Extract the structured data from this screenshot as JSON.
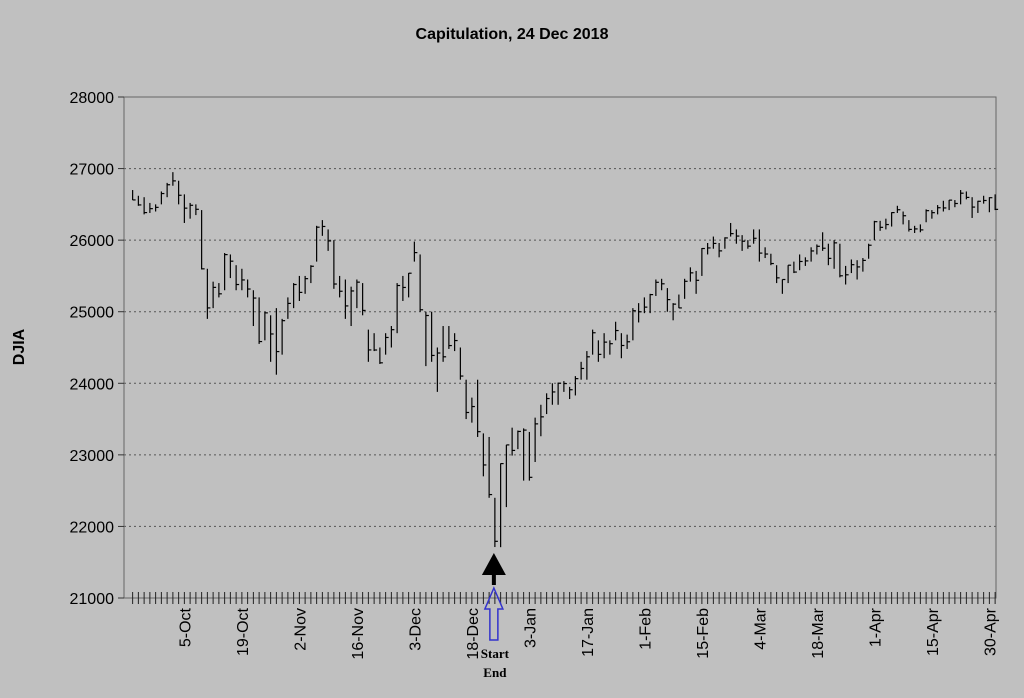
{
  "chart_data": {
    "type": "ohlc",
    "title": "Capitulation, 24 Dec 2018",
    "ylabel": "DJIA",
    "xlabel": "",
    "ylim": [
      21000,
      28000
    ],
    "yticks": [
      21000,
      22000,
      23000,
      24000,
      25000,
      26000,
      27000,
      28000
    ],
    "grid": "horizontal dotted",
    "legend": "none",
    "bar_format": "high-low-close",
    "colors": {
      "background": "#c0c0c0",
      "bars": "#000000",
      "grid": "#555555",
      "marker_up": "#000000",
      "marker_outline": "#3333cc"
    },
    "xtick_labels": [
      {
        "date": "2018-10-05",
        "label": "5-Oct"
      },
      {
        "date": "2018-10-19",
        "label": "19-Oct"
      },
      {
        "date": "2018-11-02",
        "label": "2-Nov"
      },
      {
        "date": "2018-11-16",
        "label": "16-Nov"
      },
      {
        "date": "2018-12-03",
        "label": "3-Dec"
      },
      {
        "date": "2018-12-18",
        "label": "18-Dec"
      },
      {
        "date": "2019-01-03",
        "label": "3-Jan"
      },
      {
        "date": "2019-01-17",
        "label": "17-Jan"
      },
      {
        "date": "2019-02-01",
        "label": "1-Feb"
      },
      {
        "date": "2019-02-15",
        "label": "15-Feb"
      },
      {
        "date": "2019-03-04",
        "label": "4-Mar"
      },
      {
        "date": "2019-03-18",
        "label": "18-Mar"
      },
      {
        "date": "2019-04-01",
        "label": "1-Apr"
      },
      {
        "date": "2019-04-15",
        "label": "15-Apr"
      },
      {
        "date": "2019-04-30",
        "label": "30-Apr"
      }
    ],
    "annotations": [
      {
        "date": "2018-12-24",
        "type": "arrow-up-solid",
        "label": ""
      },
      {
        "date": "2018-12-24",
        "type": "arrow-up-outline",
        "label_start": "Start",
        "label_end": "End"
      }
    ],
    "bars": [
      [
        "2018-09-24",
        26700,
        26560,
        26562
      ],
      [
        "2018-09-25",
        26620,
        26480,
        26492
      ],
      [
        "2018-09-26",
        26600,
        26360,
        26385
      ],
      [
        "2018-09-27",
        26520,
        26380,
        26440
      ],
      [
        "2018-09-28",
        26500,
        26400,
        26458
      ],
      [
        "2018-10-01",
        26680,
        26500,
        26651
      ],
      [
        "2018-10-02",
        26800,
        26600,
        26774
      ],
      [
        "2018-10-03",
        26950,
        26760,
        26828
      ],
      [
        "2018-10-04",
        26830,
        26500,
        26627
      ],
      [
        "2018-10-05",
        26640,
        26240,
        26447
      ],
      [
        "2018-10-08",
        26520,
        26300,
        26487
      ],
      [
        "2018-10-09",
        26500,
        26350,
        26431
      ],
      [
        "2018-10-10",
        26420,
        25590,
        25599
      ],
      [
        "2018-10-11",
        25600,
        24900,
        25053
      ],
      [
        "2018-10-12",
        25420,
        25050,
        25340
      ],
      [
        "2018-10-15",
        25400,
        25200,
        25250
      ],
      [
        "2018-10-16",
        25820,
        25300,
        25798
      ],
      [
        "2018-10-17",
        25800,
        25470,
        25706
      ],
      [
        "2018-10-18",
        25650,
        25300,
        25380
      ],
      [
        "2018-10-19",
        25600,
        25300,
        25444
      ],
      [
        "2018-10-22",
        25450,
        25200,
        25317
      ],
      [
        "2018-10-23",
        25300,
        24800,
        25191
      ],
      [
        "2018-10-24",
        25200,
        24550,
        24583
      ],
      [
        "2018-10-25",
        25000,
        24600,
        24984
      ],
      [
        "2018-10-26",
        24950,
        24300,
        24689
      ],
      [
        "2018-10-29",
        25050,
        24120,
        24443
      ],
      [
        "2018-10-30",
        24900,
        24400,
        24875
      ],
      [
        "2018-10-31",
        25200,
        24900,
        25116
      ],
      [
        "2018-11-01",
        25400,
        25050,
        25380
      ],
      [
        "2018-11-02",
        25500,
        25150,
        25270
      ],
      [
        "2018-11-05",
        25500,
        25250,
        25462
      ],
      [
        "2018-11-06",
        25650,
        25400,
        25635
      ],
      [
        "2018-11-07",
        26200,
        25700,
        26181
      ],
      [
        "2018-11-08",
        26280,
        26060,
        26191
      ],
      [
        "2018-11-09",
        26150,
        25850,
        25989
      ],
      [
        "2018-11-12",
        26000,
        25320,
        25387
      ],
      [
        "2018-11-13",
        25500,
        25200,
        25286
      ],
      [
        "2018-11-14",
        25450,
        24900,
        25081
      ],
      [
        "2018-11-15",
        25350,
        24800,
        25290
      ],
      [
        "2018-11-16",
        25450,
        25050,
        25413
      ],
      [
        "2018-11-19",
        25400,
        24950,
        25018
      ],
      [
        "2018-11-20",
        24750,
        24300,
        24466
      ],
      [
        "2018-11-21",
        24700,
        24450,
        24465
      ],
      [
        "2018-11-23",
        24500,
        24270,
        24286
      ],
      [
        "2018-11-26",
        24700,
        24400,
        24640
      ],
      [
        "2018-11-27",
        24800,
        24500,
        24749
      ],
      [
        "2018-11-28",
        25400,
        24700,
        25366
      ],
      [
        "2018-11-29",
        25500,
        25150,
        25339
      ],
      [
        "2018-11-30",
        25540,
        25200,
        25538
      ],
      [
        "2018-12-03",
        25980,
        25700,
        25826
      ],
      [
        "2018-12-04",
        25800,
        25000,
        25027
      ],
      [
        "2018-12-06",
        25000,
        24240,
        24947
      ],
      [
        "2018-12-07",
        25000,
        24300,
        24389
      ],
      [
        "2018-12-10",
        24500,
        23880,
        24423
      ],
      [
        "2018-12-11",
        24800,
        24300,
        24370
      ],
      [
        "2018-12-12",
        24800,
        24480,
        24527
      ],
      [
        "2018-12-13",
        24700,
        24450,
        24597
      ],
      [
        "2018-12-14",
        24500,
        24050,
        24101
      ],
      [
        "2018-12-17",
        24050,
        23500,
        23592
      ],
      [
        "2018-12-18",
        23800,
        23450,
        23675
      ],
      [
        "2018-12-19",
        24050,
        23250,
        23324
      ],
      [
        "2018-12-20",
        23300,
        22700,
        22859
      ],
      [
        "2018-12-21",
        23250,
        22400,
        22445
      ],
      [
        "2018-12-24",
        22400,
        21712,
        21792
      ],
      [
        "2018-12-26",
        22880,
        21710,
        22878
      ],
      [
        "2018-12-27",
        23140,
        22270,
        23139
      ],
      [
        "2018-12-28",
        23380,
        22990,
        23062
      ],
      [
        "2018-12-31",
        23340,
        23080,
        23327
      ],
      [
        "2019-01-02",
        23370,
        22640,
        23346
      ],
      [
        "2019-01-03",
        23320,
        22640,
        22686
      ],
      [
        "2019-01-04",
        23520,
        22900,
        23433
      ],
      [
        "2019-01-07",
        23700,
        23260,
        23531
      ],
      [
        "2019-01-08",
        23860,
        23570,
        23787
      ],
      [
        "2019-01-09",
        24000,
        23700,
        23879
      ],
      [
        "2019-01-10",
        24010,
        23700,
        24001
      ],
      [
        "2019-01-11",
        24030,
        23880,
        23996
      ],
      [
        "2019-01-14",
        23950,
        23780,
        23910
      ],
      [
        "2019-01-15",
        24100,
        23830,
        24065
      ],
      [
        "2019-01-16",
        24300,
        24050,
        24207
      ],
      [
        "2019-01-17",
        24450,
        24050,
        24370
      ],
      [
        "2019-01-18",
        24750,
        24400,
        24706
      ],
      [
        "2019-01-22",
        24600,
        24300,
        24404
      ],
      [
        "2019-01-23",
        24700,
        24350,
        24575
      ],
      [
        "2019-01-24",
        24600,
        24400,
        24553
      ],
      [
        "2019-01-25",
        24860,
        24600,
        24737
      ],
      [
        "2019-01-28",
        24700,
        24350,
        24528
      ],
      [
        "2019-01-29",
        24680,
        24480,
        24580
      ],
      [
        "2019-01-30",
        25050,
        24600,
        25014
      ],
      [
        "2019-01-31",
        25120,
        24850,
        24999
      ],
      [
        "2019-02-01",
        25200,
        24980,
        25064
      ],
      [
        "2019-02-04",
        25250,
        24980,
        25239
      ],
      [
        "2019-02-05",
        25450,
        25220,
        25411
      ],
      [
        "2019-02-06",
        25460,
        25300,
        25390
      ],
      [
        "2019-02-07",
        25330,
        25000,
        25169
      ],
      [
        "2019-02-08",
        25120,
        24880,
        25106
      ],
      [
        "2019-02-11",
        25240,
        25050,
        25053
      ],
      [
        "2019-02-12",
        25460,
        25180,
        25425
      ],
      [
        "2019-02-13",
        25620,
        25420,
        25543
      ],
      [
        "2019-02-14",
        25570,
        25250,
        25439
      ],
      [
        "2019-02-15",
        25890,
        25500,
        25883
      ],
      [
        "2019-02-19",
        25960,
        25800,
        25891
      ],
      [
        "2019-02-20",
        26050,
        25880,
        25954
      ],
      [
        "2019-02-21",
        25960,
        25760,
        25850
      ],
      [
        "2019-02-22",
        26040,
        25880,
        26031
      ],
      [
        "2019-02-25",
        26240,
        26050,
        26091
      ],
      [
        "2019-02-26",
        26150,
        25950,
        26057
      ],
      [
        "2019-02-27",
        26070,
        25850,
        25985
      ],
      [
        "2019-02-28",
        26000,
        25880,
        25916
      ],
      [
        "2019-03-01",
        26150,
        25950,
        26026
      ],
      [
        "2019-03-04",
        26150,
        25700,
        25819
      ],
      [
        "2019-03-05",
        25900,
        25750,
        25806
      ],
      [
        "2019-03-06",
        25810,
        25650,
        25673
      ],
      [
        "2019-03-07",
        25650,
        25400,
        25473
      ],
      [
        "2019-03-08",
        25450,
        25250,
        25450
      ],
      [
        "2019-03-11",
        25650,
        25400,
        25650
      ],
      [
        "2019-03-12",
        25700,
        25540,
        25554
      ],
      [
        "2019-03-13",
        25800,
        25580,
        25702
      ],
      [
        "2019-03-14",
        25760,
        25640,
        25710
      ],
      [
        "2019-03-15",
        25900,
        25700,
        25849
      ],
      [
        "2019-03-18",
        25940,
        25800,
        25914
      ],
      [
        "2019-03-19",
        26110,
        25850,
        25887
      ],
      [
        "2019-03-20",
        25950,
        25650,
        25745
      ],
      [
        "2019-03-21",
        26000,
        25600,
        25962
      ],
      [
        "2019-03-22",
        25950,
        25480,
        25502
      ],
      [
        "2019-03-25",
        25640,
        25380,
        25516
      ],
      [
        "2019-03-26",
        25730,
        25540,
        25657
      ],
      [
        "2019-03-27",
        25720,
        25450,
        25626
      ],
      [
        "2019-03-28",
        25750,
        25560,
        25717
      ],
      [
        "2019-03-29",
        25950,
        25740,
        25929
      ],
      [
        "2019-04-01",
        26270,
        26000,
        26258
      ],
      [
        "2019-04-02",
        26270,
        26130,
        26179
      ],
      [
        "2019-04-03",
        26300,
        26150,
        26218
      ],
      [
        "2019-04-04",
        26390,
        26190,
        26385
      ],
      [
        "2019-04-05",
        26480,
        26380,
        26425
      ],
      [
        "2019-04-08",
        26400,
        26220,
        26341
      ],
      [
        "2019-04-09",
        26280,
        26120,
        26150
      ],
      [
        "2019-04-10",
        26200,
        26100,
        26157
      ],
      [
        "2019-04-11",
        26220,
        26110,
        26143
      ],
      [
        "2019-04-12",
        26430,
        26250,
        26412
      ],
      [
        "2019-04-15",
        26420,
        26300,
        26384
      ],
      [
        "2019-04-16",
        26490,
        26360,
        26453
      ],
      [
        "2019-04-17",
        26550,
        26400,
        26450
      ],
      [
        "2019-04-18",
        26560,
        26420,
        26559
      ],
      [
        "2019-04-22",
        26560,
        26460,
        26512
      ],
      [
        "2019-04-23",
        26700,
        26500,
        26656
      ],
      [
        "2019-04-24",
        26680,
        26570,
        26597
      ],
      [
        "2019-04-25",
        26600,
        26310,
        26462
      ],
      [
        "2019-04-26",
        26550,
        26380,
        26543
      ],
      [
        "2019-04-29",
        26620,
        26510,
        26554
      ],
      [
        "2019-04-30",
        26600,
        26390,
        26593
      ],
      [
        "2019-05-01",
        26640,
        26420,
        26430
      ]
    ]
  }
}
